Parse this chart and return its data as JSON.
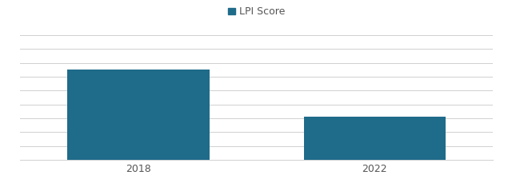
{
  "categories": [
    "2018",
    "2022"
  ],
  "values": [
    3.25,
    1.55
  ],
  "bar_color": "#1f6b8a",
  "legend_label": "LPI Score",
  "ylim": [
    0,
    4.5
  ],
  "yticks": [
    0,
    0.5,
    1.0,
    1.5,
    2.0,
    2.5,
    3.0,
    3.5,
    4.0,
    4.5
  ],
  "background_color": "#ffffff",
  "grid_color": "#d0d0d0",
  "bar_width": 0.3,
  "x_positions": [
    0.25,
    0.75
  ],
  "xlim": [
    0,
    1.0
  ],
  "legend_marker_color": "#1f6b8a",
  "tick_fontsize": 9,
  "legend_fontsize": 9
}
